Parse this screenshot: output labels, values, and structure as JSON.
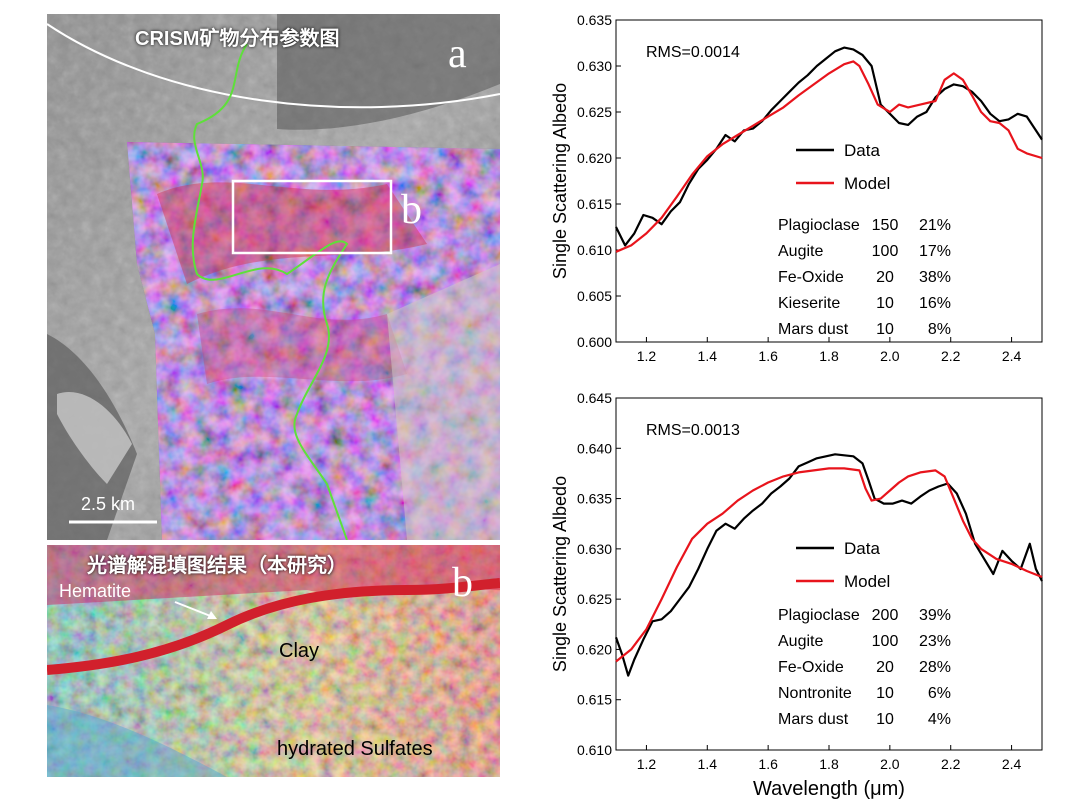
{
  "panel_a": {
    "title": "CRISM矿物分布参数图",
    "letter": "a",
    "inset_letter": "b",
    "scalebar": "2.5 km"
  },
  "panel_b": {
    "title": "光谱解混填图结果（本研究）",
    "letter": "b",
    "labels": {
      "hematite": "Hematite",
      "clay": "Clay",
      "sulfates": "hydrated Sulfates"
    }
  },
  "colors": {
    "data": "#000000",
    "model": "#e8141c",
    "boundary": "#5ee03a"
  },
  "chart_data": [
    {
      "type": "line",
      "rms": "RMS=0.0014",
      "ylabel": "Single Scattering Albedo",
      "xlabel": "",
      "xlim": [
        1.1,
        2.5
      ],
      "ylim": [
        0.6,
        0.635
      ],
      "xticks": [
        "1.2",
        "1.4",
        "1.6",
        "1.8",
        "2.0",
        "2.2",
        "2.4"
      ],
      "yticks": [
        "0.600",
        "0.605",
        "0.610",
        "0.615",
        "0.620",
        "0.625",
        "0.630",
        "0.635"
      ],
      "legend": [
        "Data",
        "Model"
      ],
      "table": [
        {
          "mineral": "Plagioclase",
          "size": "150",
          "pct": "21%"
        },
        {
          "mineral": "Augite",
          "size": "100",
          "pct": "17%"
        },
        {
          "mineral": "Fe-Oxide",
          "size": "20",
          "pct": "38%"
        },
        {
          "mineral": "Kieserite",
          "size": "10",
          "pct": "16%"
        },
        {
          "mineral": "Mars dust",
          "size": "10",
          "pct": "8%"
        }
      ],
      "series": [
        {
          "name": "Data",
          "x": [
            1.1,
            1.13,
            1.16,
            1.19,
            1.22,
            1.25,
            1.28,
            1.31,
            1.34,
            1.37,
            1.4,
            1.43,
            1.46,
            1.49,
            1.52,
            1.55,
            1.58,
            1.61,
            1.64,
            1.67,
            1.7,
            1.73,
            1.76,
            1.79,
            1.82,
            1.85,
            1.88,
            1.91,
            1.94,
            1.97,
            2.0,
            2.03,
            2.06,
            2.09,
            2.12,
            2.15,
            2.18,
            2.21,
            2.24,
            2.27,
            2.3,
            2.33,
            2.36,
            2.39,
            2.42,
            2.45,
            2.48,
            2.5
          ],
          "y": [
            0.6125,
            0.6105,
            0.6118,
            0.6138,
            0.6135,
            0.6128,
            0.6142,
            0.6152,
            0.6172,
            0.6188,
            0.6198,
            0.621,
            0.6225,
            0.6218,
            0.623,
            0.6232,
            0.624,
            0.6252,
            0.6262,
            0.6272,
            0.6282,
            0.629,
            0.63,
            0.6308,
            0.6316,
            0.632,
            0.6318,
            0.6312,
            0.63,
            0.6258,
            0.6248,
            0.6238,
            0.6236,
            0.6245,
            0.625,
            0.6266,
            0.6275,
            0.628,
            0.6278,
            0.6272,
            0.6262,
            0.6248,
            0.624,
            0.6242,
            0.6248,
            0.6245,
            0.623,
            0.622
          ]
        },
        {
          "name": "Model",
          "x": [
            1.1,
            1.15,
            1.2,
            1.25,
            1.3,
            1.35,
            1.4,
            1.45,
            1.5,
            1.55,
            1.6,
            1.65,
            1.7,
            1.75,
            1.8,
            1.85,
            1.88,
            1.9,
            1.93,
            1.96,
            2.0,
            2.03,
            2.06,
            2.1,
            2.15,
            2.18,
            2.21,
            2.24,
            2.27,
            2.3,
            2.33,
            2.36,
            2.39,
            2.42,
            2.45,
            2.5
          ],
          "y": [
            0.6098,
            0.6105,
            0.6118,
            0.6135,
            0.6158,
            0.6182,
            0.6202,
            0.6215,
            0.6225,
            0.6235,
            0.6245,
            0.6255,
            0.6268,
            0.628,
            0.6292,
            0.6302,
            0.6305,
            0.63,
            0.628,
            0.6258,
            0.625,
            0.6258,
            0.6255,
            0.6258,
            0.6262,
            0.6285,
            0.6292,
            0.6285,
            0.6268,
            0.625,
            0.624,
            0.6238,
            0.623,
            0.621,
            0.6205,
            0.62
          ]
        }
      ]
    },
    {
      "type": "line",
      "rms": "RMS=0.0013",
      "ylabel": "Single Scattering Albedo",
      "xlabel": "Wavelength  (μm)",
      "xlim": [
        1.1,
        2.5
      ],
      "ylim": [
        0.61,
        0.645
      ],
      "xticks": [
        "1.2",
        "1.4",
        "1.6",
        "1.8",
        "2.0",
        "2.2",
        "2.4"
      ],
      "yticks": [
        "0.610",
        "0.615",
        "0.620",
        "0.625",
        "0.630",
        "0.635",
        "0.640",
        "0.645"
      ],
      "legend": [
        "Data",
        "Model"
      ],
      "table": [
        {
          "mineral": "Plagioclase",
          "size": "200",
          "pct": "39%"
        },
        {
          "mineral": "Augite",
          "size": "100",
          "pct": "23%"
        },
        {
          "mineral": "Fe-Oxide",
          "size": "20",
          "pct": "28%"
        },
        {
          "mineral": "Nontronite",
          "size": "10",
          "pct": "6%"
        },
        {
          "mineral": "Mars dust",
          "size": "10",
          "pct": "4%"
        }
      ],
      "series": [
        {
          "name": "Data",
          "x": [
            1.1,
            1.12,
            1.14,
            1.16,
            1.19,
            1.22,
            1.25,
            1.28,
            1.31,
            1.34,
            1.37,
            1.4,
            1.43,
            1.46,
            1.49,
            1.52,
            1.55,
            1.58,
            1.61,
            1.64,
            1.67,
            1.7,
            1.73,
            1.76,
            1.79,
            1.82,
            1.85,
            1.88,
            1.91,
            1.93,
            1.95,
            1.98,
            2.01,
            2.04,
            2.07,
            2.1,
            2.13,
            2.16,
            2.19,
            2.22,
            2.25,
            2.28,
            2.31,
            2.34,
            2.37,
            2.4,
            2.43,
            2.46,
            2.48,
            2.5
          ],
          "y": [
            0.6212,
            0.6195,
            0.6174,
            0.619,
            0.621,
            0.6228,
            0.623,
            0.6238,
            0.625,
            0.6262,
            0.628,
            0.63,
            0.6318,
            0.6325,
            0.632,
            0.633,
            0.6338,
            0.6345,
            0.6355,
            0.6362,
            0.637,
            0.6382,
            0.6386,
            0.639,
            0.6392,
            0.6394,
            0.6393,
            0.6392,
            0.6385,
            0.6368,
            0.635,
            0.6345,
            0.6345,
            0.6348,
            0.6345,
            0.6352,
            0.6358,
            0.6362,
            0.6365,
            0.6355,
            0.6335,
            0.6305,
            0.629,
            0.6275,
            0.6298,
            0.6288,
            0.628,
            0.6305,
            0.628,
            0.6268
          ]
        },
        {
          "name": "Model",
          "x": [
            1.1,
            1.15,
            1.2,
            1.25,
            1.3,
            1.35,
            1.4,
            1.45,
            1.5,
            1.55,
            1.6,
            1.65,
            1.7,
            1.75,
            1.8,
            1.85,
            1.9,
            1.92,
            1.94,
            1.97,
            2.0,
            2.03,
            2.06,
            2.1,
            2.15,
            2.18,
            2.21,
            2.24,
            2.27,
            2.3,
            2.35,
            2.4,
            2.45,
            2.5
          ],
          "y": [
            0.6188,
            0.62,
            0.622,
            0.625,
            0.6282,
            0.631,
            0.6325,
            0.6335,
            0.6348,
            0.6358,
            0.6366,
            0.6372,
            0.6376,
            0.6378,
            0.638,
            0.638,
            0.6378,
            0.636,
            0.6348,
            0.635,
            0.6358,
            0.6366,
            0.6372,
            0.6376,
            0.6378,
            0.6372,
            0.635,
            0.6328,
            0.631,
            0.63,
            0.629,
            0.6285,
            0.6278,
            0.6272
          ]
        }
      ]
    }
  ]
}
